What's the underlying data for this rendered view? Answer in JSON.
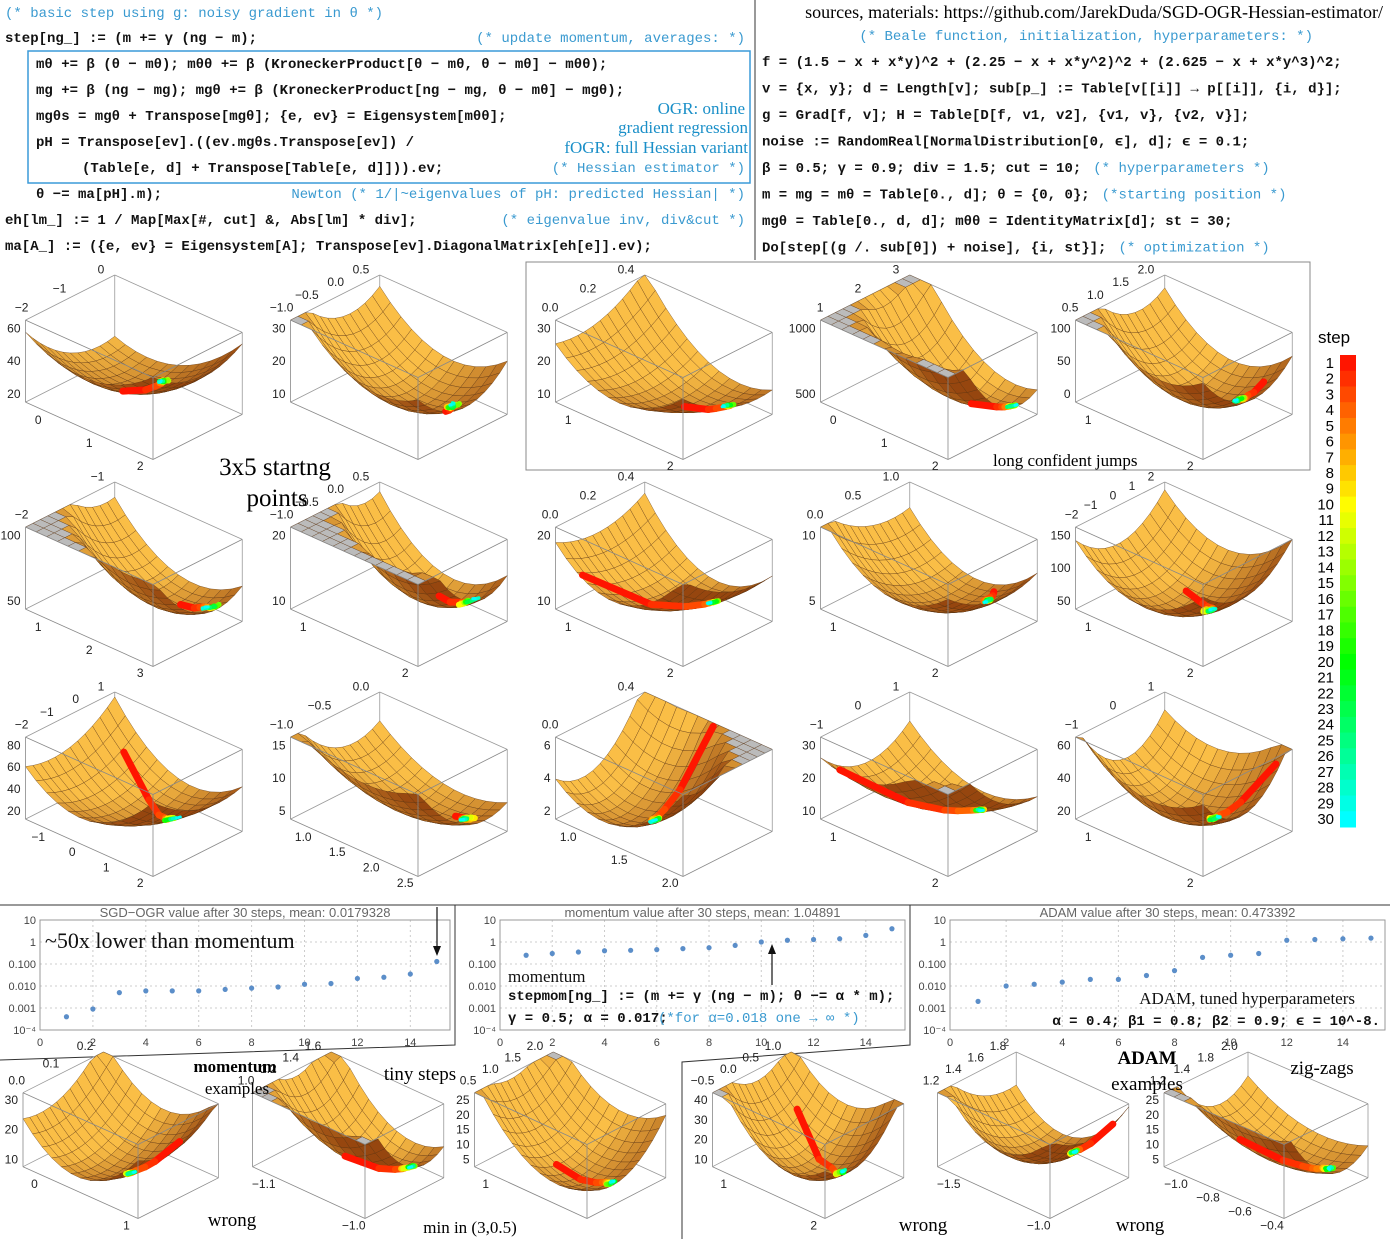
{
  "header": {
    "left_comment": "(* basic step using g: noisy gradient in θ *)",
    "sources": "sources, materials: https://github.com/JarekDuda/SGD-OGR-Hessian-estimator/"
  },
  "left_code": [
    {
      "code": "step[ng_] := (m += γ (ng − m);",
      "comment": "(* update momentum, averages: *)"
    },
    {
      "code": "mθ += β (θ − mθ); mθθ += β (KroneckerProduct[θ − mθ, θ − mθ] − mθθ);"
    },
    {
      "code": "mg += β (ng − mg); mgθ += β (KroneckerProduct[ng − mg, θ − mθ] − mgθ);"
    },
    {
      "code": "mgθs = mgθ + Transpose[mgθ]; {e, ev} = Eigensystem[mθθ];"
    },
    {
      "code": "pH = Transpose[ev].((ev.mgθs.Transpose[ev]) /"
    },
    {
      "code": "(Table[e, d] + Transpose[Table[e, d]])).ev;",
      "comment": "(* Hessian estimator *)"
    },
    {
      "code": "θ −= ma[pH].m);",
      "comment": "Newton (* 1/|~eigenvalues of pH: predicted Hessian| *)"
    },
    {
      "code": "eh[lm_] := 1 / Map[Max[#, cut] &, Abs[lm] * div];",
      "comment": "(* eigenvalue inv, div&cut *)"
    },
    {
      "code": "ma[A_] := ({e, ev} = Eigensystem[A]; Transpose[ev].DiagonalMatrix[eh[e]].ev);"
    }
  ],
  "ogr_notes": [
    "OGR: online",
    "gradient regression",
    "fOGR: full Hessian variant"
  ],
  "right_code": [
    {
      "code": "f = (1.5 − x + x*y)^2 + (2.25 − x + x*y^2)^2 + (2.625 − x + x*y^3)^2;"
    },
    {
      "code": "v = {x, y}; d = Length[v]; sub[p_] := Table[v[[i]] → p[[i]], {i, d}];"
    },
    {
      "code": "g = Grad[f, v]; H = Table[D[f, v1, v2], {v1, v}, {v2, v}];"
    },
    {
      "code": "noise := RandomReal[NormalDistribution[0, ϵ], d]; ϵ = 0.1;"
    },
    {
      "code": "β = 0.5; γ = 0.9; div = 1.5; cut = 10;",
      "comment": "(* hyperparameters *)"
    },
    {
      "code": "m = mg = mθ = Table[0., d]; θ = {0, 0};",
      "comment": "(*starting position *)"
    },
    {
      "code": "mgθ = Table[0., d, d]; mθθ = IdentityMatrix[d]; st = 30;"
    },
    {
      "code": "Do[step[(g /. sub[θ]) + noise], {i, st}];",
      "comment": "(* optimization *)"
    }
  ],
  "right_comment": "(* Beale function, initialization, hyperparameters: *)",
  "plot_labels": {
    "start_points": [
      "3x5 startng",
      "points"
    ],
    "long_jumps": "long confident jumps"
  },
  "colorbar": {
    "title": "step",
    "ticks": [
      1,
      2,
      3,
      4,
      5,
      6,
      7,
      8,
      9,
      10,
      11,
      12,
      13,
      14,
      15,
      16,
      17,
      18,
      19,
      20,
      21,
      22,
      23,
      24,
      25,
      26,
      27,
      28,
      29,
      30
    ]
  },
  "surface_plots": [
    {
      "y_ticks": [
        "0",
        "−1",
        "−2"
      ],
      "z_ticks": [
        "60",
        "40",
        "20"
      ],
      "x_ticks": [
        "0",
        "1",
        "2"
      ]
    },
    {
      "y_ticks": [
        "0.5",
        "0.0",
        "−0.5",
        "−1.0"
      ],
      "z_ticks": [
        "30",
        "20",
        "10"
      ]
    },
    {
      "y_ticks": [
        "0.4",
        "0.2",
        "0.0"
      ],
      "z_ticks": [
        "30",
        "20",
        "10"
      ],
      "x_ticks": [
        "1",
        "2"
      ]
    },
    {
      "y_ticks": [
        "3",
        "2",
        "1"
      ],
      "z_ticks": [
        "1000",
        "500"
      ],
      "x_ticks": [
        "0",
        "1",
        "2"
      ]
    },
    {
      "y_ticks": [
        "2.0",
        "1.5",
        "1.0",
        "0.5"
      ],
      "z_ticks": [
        "100",
        "50",
        "0"
      ],
      "x_ticks": [
        "1",
        "2"
      ]
    },
    {
      "y_ticks": [
        "−1",
        "−2"
      ],
      "z_ticks": [
        "100",
        "50"
      ],
      "x_ticks": [
        "1",
        "2",
        "3"
      ]
    },
    {
      "y_ticks": [
        "0.5",
        "0.0",
        "−0.5",
        "−1.0"
      ],
      "z_ticks": [
        "20",
        "10"
      ],
      "x_ticks": [
        "1",
        "2"
      ]
    },
    {
      "y_ticks": [
        "0.4",
        "0.2",
        "0.0"
      ],
      "z_ticks": [
        "20",
        "10"
      ],
      "x_ticks": [
        "1",
        "2"
      ]
    },
    {
      "y_ticks": [
        "1.0",
        "0.5",
        "0.0"
      ],
      "z_ticks": [
        "10",
        "5"
      ],
      "x_ticks": [
        "1",
        "2"
      ]
    },
    {
      "y_ticks": [
        "2",
        "1",
        "0",
        "−1",
        "−2"
      ],
      "z_ticks": [
        "150",
        "100",
        "50"
      ],
      "x_ticks": [
        "1",
        "2"
      ]
    },
    {
      "y_ticks": [
        "1",
        "0",
        "−1",
        "−2"
      ],
      "z_ticks": [
        "80",
        "60",
        "40",
        "20"
      ],
      "x_ticks": [
        "−1",
        "0",
        "1",
        "2"
      ]
    },
    {
      "y_ticks": [
        "0.0",
        "−0.5",
        "−1.0"
      ],
      "z_ticks": [
        "15",
        "10",
        "5"
      ],
      "x_ticks": [
        "1.0",
        "1.5",
        "2.0",
        "2.5"
      ]
    },
    {
      "y_ticks": [
        "0.4",
        "0.0"
      ],
      "z_ticks": [
        "6",
        "4",
        "2"
      ],
      "x_ticks": [
        "1.0",
        "1.5",
        "2.0"
      ]
    },
    {
      "y_ticks": [
        "1",
        "0",
        "−1"
      ],
      "z_ticks": [
        "30",
        "20",
        "10"
      ],
      "x_ticks": [
        "1",
        "2"
      ]
    },
    {
      "y_ticks": [
        "1",
        "0",
        "−1"
      ],
      "z_ticks": [
        "60",
        "40",
        "20"
      ],
      "x_ticks": [
        "1",
        "2"
      ]
    },
    {
      "y_ticks": [
        "0.2",
        "0.1",
        "0.0"
      ],
      "z_ticks": [
        "30",
        "20",
        "10"
      ],
      "x_ticks": [
        "0",
        "1"
      ]
    },
    {
      "y_ticks": [
        "1.6",
        "1.4",
        "1.2",
        "1.0"
      ],
      "x_ticks": [
        "−1.1",
        "−1.0"
      ]
    },
    {
      "y_ticks": [
        "2.0",
        "1.5",
        "1.0",
        "0.5"
      ],
      "z_ticks": [
        "25",
        "20",
        "15",
        "10",
        "5"
      ],
      "x_ticks": [
        "1"
      ]
    },
    {
      "y_ticks": [
        "1.0",
        "0.5",
        "0.0",
        "−0.5"
      ],
      "z_ticks": [
        "40",
        "30",
        "20",
        "10"
      ],
      "x_ticks": [
        "1",
        "2"
      ]
    },
    {
      "y_ticks": [
        "1.8",
        "1.6",
        "1.4",
        "1.2"
      ],
      "x_ticks": [
        "−1.5",
        "−1.0"
      ]
    },
    {
      "y_ticks": [
        "2.0",
        "1.8",
        "1.4",
        "1.2"
      ],
      "z_ticks": [
        "25",
        "20",
        "15",
        "10",
        "5"
      ],
      "x_ticks": [
        "−1.0",
        "−0.8",
        "−0.6",
        "−0.4"
      ]
    }
  ],
  "bottom_labels": {
    "momentum": [
      "momentum",
      "examples"
    ],
    "tiny": "tiny steps",
    "wrong1": "wrong",
    "min": "min in (3,0.5)",
    "adam": [
      "ADAM",
      "examples"
    ],
    "zigzag": "zig-zags",
    "wrong2": "wrong",
    "wrong3": "wrong"
  },
  "chart_data": [
    {
      "type": "scatter",
      "title": "SGD−OGR value after 30 steps, mean: 0.0179328",
      "x": [
        1,
        2,
        3,
        4,
        5,
        6,
        7,
        8,
        9,
        10,
        11,
        12,
        13,
        14,
        15
      ],
      "values": [
        0.0004,
        0.0009,
        0.005,
        0.006,
        0.006,
        0.006,
        0.007,
        0.008,
        0.009,
        0.012,
        0.013,
        0.022,
        0.025,
        0.035,
        0.13
      ],
      "color": "#5b8ec9",
      "xlim": [
        0,
        15.5
      ],
      "xticks": [
        0,
        2,
        4,
        6,
        8,
        10,
        12,
        14
      ],
      "ylim": [
        0.0001,
        10
      ],
      "log_y": true,
      "yticks": [
        {
          "value": 0.0001,
          "label": "10⁻⁴"
        },
        0.001,
        {
          "value": 0.01,
          "label": "0.010"
        },
        {
          "value": 0.1,
          "label": "0.100"
        },
        1,
        10
      ],
      "grid": true,
      "annotations": [
        "~50x lower than momentum"
      ]
    },
    {
      "type": "scatter",
      "title": "momentum value after 30 steps, mean: 1.04891",
      "x": [
        1,
        2,
        3,
        4,
        5,
        6,
        7,
        8,
        9,
        10,
        11,
        12,
        13,
        14,
        15
      ],
      "values": [
        0.25,
        0.3,
        0.35,
        0.4,
        0.42,
        0.45,
        0.5,
        0.55,
        0.7,
        1.0,
        1.2,
        1.3,
        1.4,
        2.0,
        4.0
      ],
      "color": "#5b8ec9",
      "xlim": [
        0,
        15.5
      ],
      "xticks": [
        0,
        2,
        4,
        6,
        8,
        10,
        12,
        14
      ],
      "ylim": [
        0.0001,
        10
      ],
      "log_y": true,
      "yticks": [
        {
          "value": 0.0001,
          "label": "10⁻⁴"
        },
        0.001,
        {
          "value": 0.01,
          "label": "0.010"
        },
        {
          "value": 0.1,
          "label": "0.100"
        },
        1,
        10
      ],
      "grid": true,
      "annotations": [
        "momentum",
        "stepmom[ng_] := (m += γ (ng − m); θ −= α * m);",
        "γ = 0.5; α = 0.017;",
        "(*for α=0.018 one → ∞ *)"
      ]
    },
    {
      "type": "scatter",
      "title": "ADAM value after 30 steps, mean: 0.473392",
      "x": [
        1,
        2,
        3,
        4,
        5,
        6,
        7,
        8,
        9,
        10,
        11,
        12,
        13,
        14,
        15
      ],
      "values": [
        0.002,
        0.01,
        0.012,
        0.015,
        0.02,
        0.02,
        0.03,
        0.05,
        0.2,
        0.25,
        0.3,
        1.2,
        1.3,
        1.4,
        1.5
      ],
      "color": "#5b8ec9",
      "xlim": [
        0,
        15.5
      ],
      "xticks": [
        0,
        2,
        4,
        6,
        8,
        10,
        12,
        14
      ],
      "ylim": [
        0.0001,
        10
      ],
      "log_y": true,
      "yticks": [
        {
          "value": 0.0001,
          "label": "10⁻⁴"
        },
        0.001,
        {
          "value": 0.01,
          "label": "0.010"
        },
        {
          "value": 0.1,
          "label": "0.100"
        },
        1,
        10
      ],
      "grid": true,
      "annotations": [
        "ADAM, tuned hyperparameters",
        "α = 0.4; β1 = 0.8; β2 = 0.9; ϵ = 10^-8."
      ]
    }
  ]
}
